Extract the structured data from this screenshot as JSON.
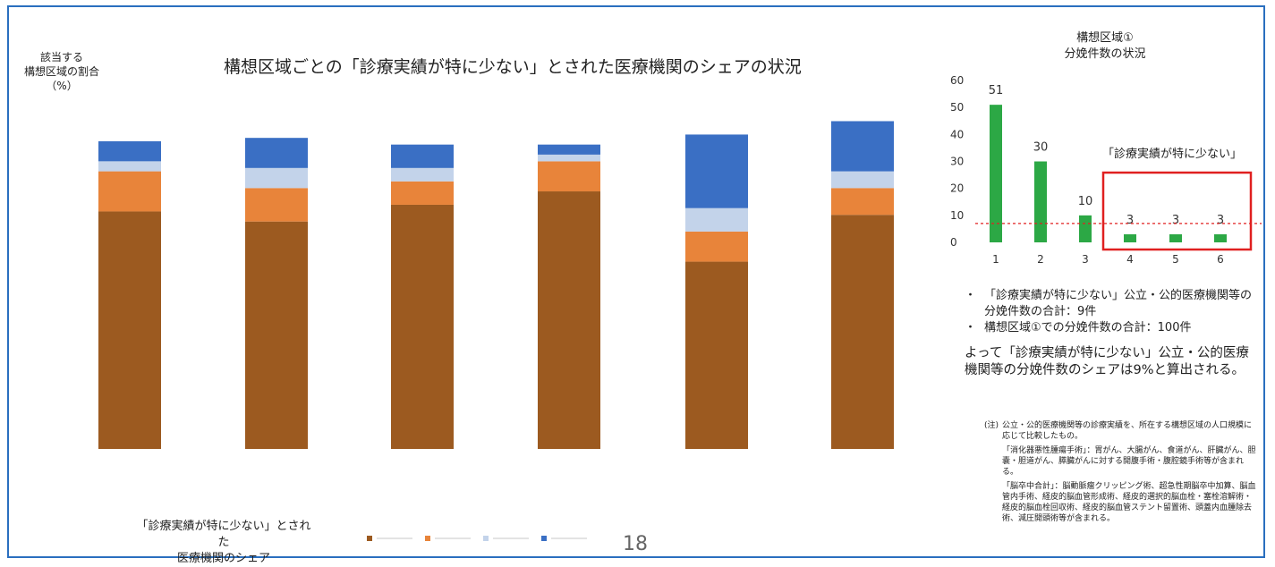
{
  "header": {
    "main_title": "構想区域ごとの「診療実績が特に少ない」とされた医療機関のシェアの状況",
    "y_axis_label": [
      "該当する",
      "構想区域の割合",
      "（%）"
    ]
  },
  "legend": {
    "title": [
      "「診療実績が特に少ない」とされた",
      "医療機関のシェア"
    ]
  },
  "page_number": "18",
  "colors": {
    "brown": "#9c5a20",
    "orange": "#e8843a",
    "light_blue": "#c3d3ea",
    "blue": "#3a6fc4",
    "green": "#2ca845",
    "red": "#e02020",
    "frame": "#2a6fbf"
  },
  "chart_data": [
    {
      "type": "bar",
      "stacked": true,
      "categories": [
        "",
        "",
        "",
        "",
        "",
        ""
      ],
      "series": [
        {
          "color": "#9c5a20",
          "values": [
            71,
            68,
            73,
            77,
            56,
            70
          ]
        },
        {
          "color": "#e8843a",
          "values": [
            12,
            10,
            7,
            9,
            9,
            8
          ]
        },
        {
          "color": "#c3d3ea",
          "values": [
            3,
            6,
            4,
            2,
            7,
            5
          ]
        },
        {
          "color": "#3a6fc4",
          "values": [
            6,
            9,
            7,
            3,
            22,
            15
          ]
        }
      ],
      "ylim": [
        0,
        100
      ]
    },
    {
      "type": "bar",
      "title": [
        "構想区域①",
        "分娩件数の状況"
      ],
      "categories": [
        "1",
        "2",
        "3",
        "4",
        "5",
        "6"
      ],
      "values": [
        51,
        30,
        10,
        3,
        3,
        3
      ],
      "data_labels": [
        "51",
        "30",
        "10",
        "3",
        "3",
        "3"
      ],
      "y_ticks": [
        "60",
        "50",
        "40",
        "30",
        "20",
        "10",
        "0"
      ],
      "ylim": [
        0,
        60
      ],
      "threshold_line": 7,
      "highlight_label": "「診療実績が特に少ない」",
      "highlight_categories": [
        "4",
        "5",
        "6"
      ]
    }
  ],
  "notes": [
    {
      "bullet": "・",
      "text": "「診療実績が特に少ない」公立・公的医療機関等の分娩件数の合計：9件"
    },
    {
      "bullet": "・",
      "text": "構想区域①での分娩件数の合計：100件"
    }
  ],
  "conclusion": "よって「診療実績が特に少ない」公立・公的医療機関等の分娩件数のシェアは9%と算出される。",
  "footnote": {
    "label": "(注)",
    "paragraphs": [
      "公立・公的医療機関等の診療実績を、所在する構想区域の人口規模に応じて比較したもの。",
      "「消化器悪性腫瘍手術」：胃がん、大腸がん、食道がん、肝臓がん、胆嚢・胆道がん、膵臓がんに対する開腹手術・腹腔鏡手術等が含まれる。",
      "「脳卒中合計」：脳動脈瘤クリッピング術、超急性期脳卒中加算、脳血管内手術、経皮的脳血管形成術、経皮的選択的脳血栓・塞栓溶解術・経皮的脳血栓回収術、経皮的脳血管ステント留置術、頭蓋内血腫除去術、減圧開頭術等が含まれる。"
    ]
  }
}
